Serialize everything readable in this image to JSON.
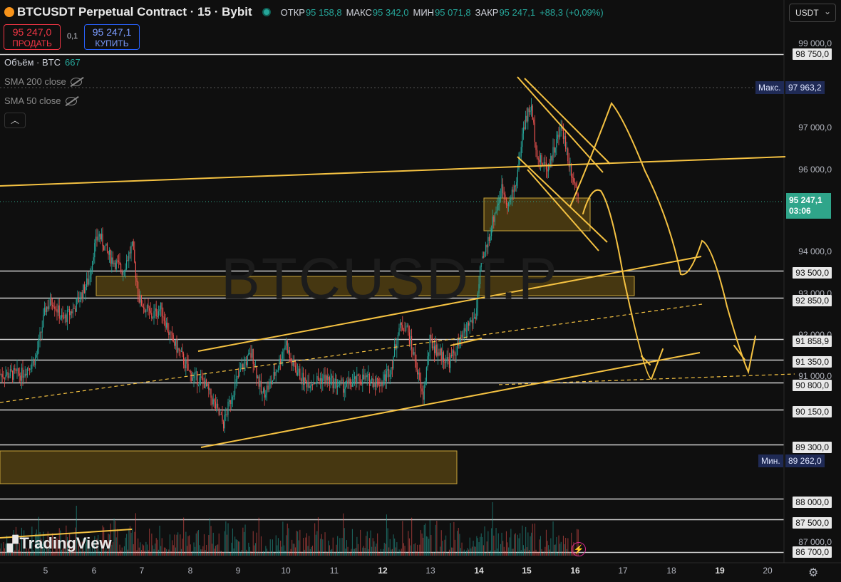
{
  "header": {
    "title": "BTCUSDT Perpetual Contract · 15 · Bybit",
    "ohlc": [
      {
        "key": "ОТКР",
        "value": "95 158,8"
      },
      {
        "key": "МАКС",
        "value": "95 342,0"
      },
      {
        "key": "МИН",
        "value": "95 071,8"
      },
      {
        "key": "ЗАКР",
        "value": "95 247,1"
      }
    ],
    "change": "+88,3 (+0,09%)",
    "currency": "USDT"
  },
  "trade": {
    "sell_price": "95 247,0",
    "sell_label": "ПРОДАТЬ",
    "spread": "0,1",
    "buy_price": "95 247,1",
    "buy_label": "КУПИТЬ"
  },
  "indicators": {
    "volume_label": "Объём · BTC",
    "volume_value": "667",
    "sma200": "SMA 200 close",
    "sma50": "SMA 50 close"
  },
  "watermark": "BTCUSDT.P",
  "branding": "TradingView",
  "price_axis": {
    "ticks": [
      "99 000,0",
      "97 000,0",
      "96 000,0",
      "94 000,0",
      "93 000,0",
      "92 000,0",
      "91 000,0",
      "87 000,0"
    ],
    "levels": [
      "98 750,0",
      "93 500,0",
      "92 850,0",
      "91 858,9",
      "91 350,0",
      "90 800,0",
      "90 150,0",
      "89 300,0",
      "88 000,0",
      "87 500,0",
      "86 700,0"
    ],
    "max_label": "Макс.",
    "max_value": "97 963,2",
    "min_label": "Мин.",
    "min_value": "89 262,0",
    "current_price": "95 247,1",
    "countdown": "03:06"
  },
  "time_axis": [
    "5",
    "6",
    "7",
    "8",
    "9",
    "10",
    "11",
    "12",
    "13",
    "14",
    "15",
    "16",
    "17",
    "18",
    "19",
    "20"
  ],
  "colors": {
    "background": "#0f0f0f",
    "up": "#26a69a",
    "down": "#ef5350",
    "drawing": "#f5c242",
    "level_line": "#d0d0d0",
    "zone_fill": "#5a4613"
  },
  "chart_data": {
    "type": "candlestick",
    "symbol": "BTCUSDT.P",
    "interval": "15",
    "ylim": [
      86600,
      99300
    ],
    "horizontal_levels": [
      98750,
      93500,
      92850,
      91858.9,
      91350,
      90800,
      90150,
      89300,
      88000,
      87500,
      86700
    ],
    "price_path": [
      [
        4.5,
        91000
      ],
      [
        4.8,
        91400
      ],
      [
        5.0,
        92600
      ],
      [
        5.15,
        92800
      ],
      [
        5.35,
        92300
      ],
      [
        5.6,
        92600
      ],
      [
        5.9,
        93300
      ],
      [
        6.0,
        94000
      ],
      [
        6.1,
        94400
      ],
      [
        6.3,
        93900
      ],
      [
        6.6,
        93500
      ],
      [
        6.8,
        94100
      ],
      [
        6.95,
        92800
      ],
      [
        7.2,
        92400
      ],
      [
        7.4,
        92600
      ],
      [
        7.6,
        91900
      ],
      [
        7.8,
        91500
      ],
      [
        8.0,
        91000
      ],
      [
        8.3,
        90800
      ],
      [
        8.5,
        90300
      ],
      [
        8.7,
        89800
      ],
      [
        8.9,
        90600
      ],
      [
        9.1,
        91200
      ],
      [
        9.3,
        91500
      ],
      [
        9.5,
        90500
      ],
      [
        9.7,
        90800
      ],
      [
        9.9,
        91400
      ],
      [
        10.0,
        91800
      ],
      [
        10.1,
        91300
      ],
      [
        10.4,
        90800
      ],
      [
        10.8,
        90900
      ],
      [
        11.2,
        90700
      ],
      [
        11.6,
        90900
      ],
      [
        12.0,
        90800
      ],
      [
        12.2,
        91200
      ],
      [
        12.35,
        92100
      ],
      [
        12.5,
        92200
      ],
      [
        12.7,
        91300
      ],
      [
        12.85,
        90400
      ],
      [
        13.0,
        91800
      ],
      [
        13.2,
        91500
      ],
      [
        13.4,
        91300
      ],
      [
        13.6,
        91700
      ],
      [
        13.8,
        92200
      ],
      [
        13.95,
        92400
      ],
      [
        14.05,
        93500
      ],
      [
        14.2,
        94200
      ],
      [
        14.35,
        94900
      ],
      [
        14.5,
        95500
      ],
      [
        14.65,
        95100
      ],
      [
        14.8,
        95700
      ],
      [
        14.95,
        97000
      ],
      [
        15.1,
        97500
      ],
      [
        15.25,
        96200
      ],
      [
        15.45,
        96000
      ],
      [
        15.6,
        96500
      ],
      [
        15.75,
        97000
      ],
      [
        15.9,
        96100
      ],
      [
        16.0,
        95700
      ],
      [
        16.1,
        95247
      ]
    ]
  }
}
